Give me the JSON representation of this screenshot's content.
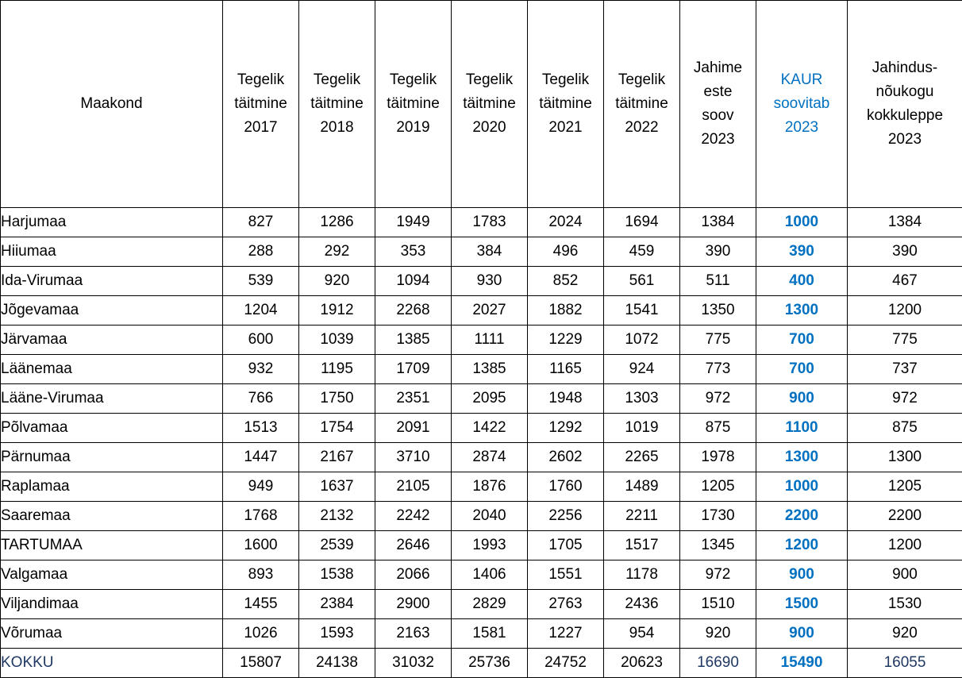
{
  "table": {
    "colors": {
      "accent_blue": "#0070C0",
      "total_navy": "#1F3864",
      "border": "#000000",
      "text": "#000000"
    },
    "columns": [
      {
        "key": "maakond",
        "label": "Maakond"
      },
      {
        "key": "t2017",
        "label": "Tegelik\ntäitmine\n2017"
      },
      {
        "key": "t2018",
        "label": "Tegelik\ntäitmine\n2018"
      },
      {
        "key": "t2019",
        "label": "Tegelik\ntäitmine\n2019"
      },
      {
        "key": "t2020",
        "label": "Tegelik\ntäitmine\n2020"
      },
      {
        "key": "t2021",
        "label": "Tegelik\ntäitmine\n2021"
      },
      {
        "key": "t2022",
        "label": "Tegelik\ntäitmine\n2022"
      },
      {
        "key": "soov",
        "label": "Jahime\neste\nsoov\n2023"
      },
      {
        "key": "kaur",
        "label": "KAUR\nsoovitab\n2023"
      },
      {
        "key": "kokkuleppe",
        "label": "Jahindus-\nnõukogu\nkokkuleppe\n2023"
      }
    ],
    "rows": [
      {
        "maakond": "Harjumaa",
        "t2017": "827",
        "t2018": "1286",
        "t2019": "1949",
        "t2020": "1783",
        "t2021": "2024",
        "t2022": "1694",
        "soov": "1384",
        "kaur": "1000",
        "kokkuleppe": "1384"
      },
      {
        "maakond": "Hiiumaa",
        "t2017": "288",
        "t2018": "292",
        "t2019": "353",
        "t2020": "384",
        "t2021": "496",
        "t2022": "459",
        "soov": "390",
        "kaur": "390",
        "kokkuleppe": "390"
      },
      {
        "maakond": "Ida-Virumaa",
        "t2017": "539",
        "t2018": "920",
        "t2019": "1094",
        "t2020": "930",
        "t2021": "852",
        "t2022": "561",
        "soov": "511",
        "kaur": "400",
        "kokkuleppe": "467"
      },
      {
        "maakond": "Jõgevamaa",
        "t2017": "1204",
        "t2018": "1912",
        "t2019": "2268",
        "t2020": "2027",
        "t2021": "1882",
        "t2022": "1541",
        "soov": "1350",
        "kaur": "1300",
        "kokkuleppe": "1200"
      },
      {
        "maakond": "Järvamaa",
        "t2017": "600",
        "t2018": "1039",
        "t2019": "1385",
        "t2020": "1111",
        "t2021": "1229",
        "t2022": "1072",
        "soov": "775",
        "kaur": "700",
        "kokkuleppe": "775"
      },
      {
        "maakond": "Läänemaa",
        "t2017": "932",
        "t2018": "1195",
        "t2019": "1709",
        "t2020": "1385",
        "t2021": "1165",
        "t2022": "924",
        "soov": "773",
        "kaur": "700",
        "kokkuleppe": "737"
      },
      {
        "maakond": "Lääne-Virumaa",
        "t2017": "766",
        "t2018": "1750",
        "t2019": "2351",
        "t2020": "2095",
        "t2021": "1948",
        "t2022": "1303",
        "soov": "972",
        "kaur": "900",
        "kokkuleppe": "972"
      },
      {
        "maakond": "Põlvamaa",
        "t2017": "1513",
        "t2018": "1754",
        "t2019": "2091",
        "t2020": "1422",
        "t2021": "1292",
        "t2022": "1019",
        "soov": "875",
        "kaur": "1100",
        "kokkuleppe": "875"
      },
      {
        "maakond": "Pärnumaa",
        "t2017": "1447",
        "t2018": "2167",
        "t2019": "3710",
        "t2020": "2874",
        "t2021": "2602",
        "t2022": "2265",
        "soov": "1978",
        "kaur": "1300",
        "kokkuleppe": "1300"
      },
      {
        "maakond": "Raplamaa",
        "t2017": "949",
        "t2018": "1637",
        "t2019": "2105",
        "t2020": "1876",
        "t2021": "1760",
        "t2022": "1489",
        "soov": "1205",
        "kaur": "1000",
        "kokkuleppe": "1205"
      },
      {
        "maakond": "Saaremaa",
        "t2017": "1768",
        "t2018": "2132",
        "t2019": "2242",
        "t2020": "2040",
        "t2021": "2256",
        "t2022": "2211",
        "soov": "1730",
        "kaur": "2200",
        "kokkuleppe": "2200"
      },
      {
        "maakond": "TARTUMAA",
        "t2017": "1600",
        "t2018": "2539",
        "t2019": "2646",
        "t2020": "1993",
        "t2021": "1705",
        "t2022": "1517",
        "soov": "1345",
        "kaur": "1200",
        "kokkuleppe": "1200"
      },
      {
        "maakond": "Valgamaa",
        "t2017": "893",
        "t2018": "1538",
        "t2019": "2066",
        "t2020": "1406",
        "t2021": "1551",
        "t2022": "1178",
        "soov": "972",
        "kaur": "900",
        "kokkuleppe": "900"
      },
      {
        "maakond": "Viljandimaa",
        "t2017": "1455",
        "t2018": "2384",
        "t2019": "2900",
        "t2020": "2829",
        "t2021": "2763",
        "t2022": "2436",
        "soov": "1510",
        "kaur": "1500",
        "kokkuleppe": "1530"
      },
      {
        "maakond": "Võrumaa",
        "t2017": "1026",
        "t2018": "1593",
        "t2019": "2163",
        "t2020": "1581",
        "t2021": "1227",
        "t2022": "954",
        "soov": "920",
        "kaur": "900",
        "kokkuleppe": "920"
      }
    ],
    "total_row": {
      "maakond": "KOKKU",
      "t2017": "15807",
      "t2018": "24138",
      "t2019": "31032",
      "t2020": "25736",
      "t2021": "24752",
      "t2022": "20623",
      "soov": "16690",
      "kaur": "15490",
      "kokkuleppe": "16055"
    }
  }
}
